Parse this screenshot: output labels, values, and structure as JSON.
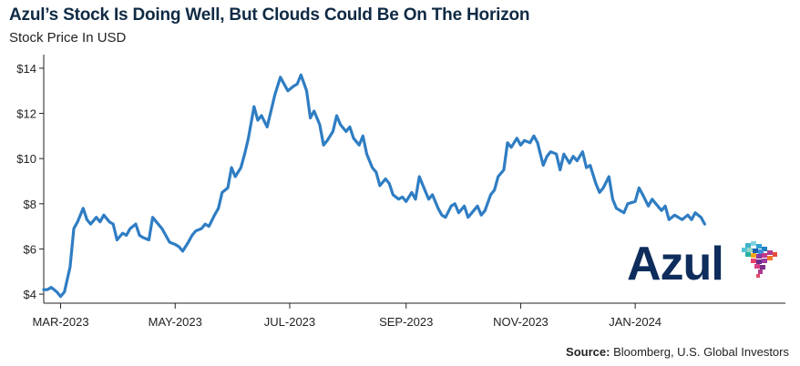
{
  "header": {
    "title": "Azul’s Stock Is Doing Well, But Clouds Could Be On The Horizon",
    "subtitle": "Stock Price In USD"
  },
  "source": {
    "label": "Source:",
    "text": "Bloomberg, U.S. Global Investors"
  },
  "logo": {
    "text": "Azul",
    "icon": "brazil-map-pixel-icon",
    "brand_color": "#0f2d5c"
  },
  "colors": {
    "line": "#2f7dc3",
    "axis": "#222222"
  },
  "chart_data": {
    "type": "line",
    "title": "Azul’s Stock Is Doing Well, But Clouds Could Be On The Horizon",
    "ylabel": "Stock Price In USD",
    "ylim": [
      3.6,
      14.6
    ],
    "xlim": [
      "2023-02-20",
      "2024-03-21"
    ],
    "grid": false,
    "y_ticks": [
      4,
      6,
      8,
      10,
      12,
      14
    ],
    "y_tick_labels": [
      "$4",
      "$6",
      "$8",
      "$10",
      "$12",
      "$14"
    ],
    "x_ticks": [
      "2023-03-01",
      "2023-05-01",
      "2023-07-01",
      "2023-09-01",
      "2023-11-01",
      "2024-01-01"
    ],
    "x_tick_labels": [
      "MAR-2023",
      "MAY-2023",
      "JUL-2023",
      "SEP-2023",
      "NOV-2023",
      "JAN-2024"
    ],
    "series": [
      {
        "values": [
          [
            "2023-02-20",
            4.2
          ],
          [
            "2023-02-22",
            4.2
          ],
          [
            "2023-02-24",
            4.3
          ],
          [
            "2023-02-27",
            4.1
          ],
          [
            "2023-03-01",
            3.9
          ],
          [
            "2023-03-03",
            4.1
          ],
          [
            "2023-03-06",
            5.2
          ],
          [
            "2023-03-08",
            6.9
          ],
          [
            "2023-03-10",
            7.2
          ],
          [
            "2023-03-13",
            7.8
          ],
          [
            "2023-03-15",
            7.3
          ],
          [
            "2023-03-17",
            7.1
          ],
          [
            "2023-03-20",
            7.4
          ],
          [
            "2023-03-22",
            7.2
          ],
          [
            "2023-03-24",
            7.5
          ],
          [
            "2023-03-27",
            7.2
          ],
          [
            "2023-03-29",
            7.1
          ],
          [
            "2023-03-31",
            6.4
          ],
          [
            "2023-04-03",
            6.7
          ],
          [
            "2023-04-05",
            6.6
          ],
          [
            "2023-04-07",
            6.9
          ],
          [
            "2023-04-10",
            7.1
          ],
          [
            "2023-04-12",
            6.6
          ],
          [
            "2023-04-14",
            6.5
          ],
          [
            "2023-04-17",
            6.4
          ],
          [
            "2023-04-19",
            7.4
          ],
          [
            "2023-04-21",
            7.2
          ],
          [
            "2023-04-24",
            6.9
          ],
          [
            "2023-04-26",
            6.6
          ],
          [
            "2023-04-28",
            6.3
          ],
          [
            "2023-05-01",
            6.2
          ],
          [
            "2023-05-03",
            6.1
          ],
          [
            "2023-05-05",
            5.9
          ],
          [
            "2023-05-08",
            6.3
          ],
          [
            "2023-05-10",
            6.6
          ],
          [
            "2023-05-12",
            6.8
          ],
          [
            "2023-05-15",
            6.9
          ],
          [
            "2023-05-17",
            7.1
          ],
          [
            "2023-05-19",
            7.0
          ],
          [
            "2023-05-22",
            7.5
          ],
          [
            "2023-05-24",
            7.8
          ],
          [
            "2023-05-26",
            8.5
          ],
          [
            "2023-05-29",
            8.7
          ],
          [
            "2023-05-31",
            9.6
          ],
          [
            "2023-06-02",
            9.2
          ],
          [
            "2023-06-05",
            9.6
          ],
          [
            "2023-06-07",
            10.2
          ],
          [
            "2023-06-09",
            10.9
          ],
          [
            "2023-06-12",
            12.3
          ],
          [
            "2023-06-14",
            11.7
          ],
          [
            "2023-06-16",
            11.9
          ],
          [
            "2023-06-19",
            11.4
          ],
          [
            "2023-06-21",
            12.1
          ],
          [
            "2023-06-23",
            12.8
          ],
          [
            "2023-06-26",
            13.6
          ],
          [
            "2023-06-28",
            13.3
          ],
          [
            "2023-06-30",
            13.0
          ],
          [
            "2023-07-03",
            13.2
          ],
          [
            "2023-07-05",
            13.3
          ],
          [
            "2023-07-07",
            13.7
          ],
          [
            "2023-07-10",
            13.0
          ],
          [
            "2023-07-12",
            11.8
          ],
          [
            "2023-07-14",
            12.1
          ],
          [
            "2023-07-17",
            11.5
          ],
          [
            "2023-07-19",
            10.6
          ],
          [
            "2023-07-21",
            10.8
          ],
          [
            "2023-07-24",
            11.2
          ],
          [
            "2023-07-26",
            11.9
          ],
          [
            "2023-07-28",
            11.5
          ],
          [
            "2023-07-31",
            11.2
          ],
          [
            "2023-08-02",
            11.4
          ],
          [
            "2023-08-04",
            10.9
          ],
          [
            "2023-08-07",
            10.6
          ],
          [
            "2023-08-09",
            11.0
          ],
          [
            "2023-08-11",
            10.2
          ],
          [
            "2023-08-14",
            9.6
          ],
          [
            "2023-08-16",
            9.4
          ],
          [
            "2023-08-18",
            8.8
          ],
          [
            "2023-08-21",
            9.1
          ],
          [
            "2023-08-23",
            8.9
          ],
          [
            "2023-08-25",
            8.4
          ],
          [
            "2023-08-28",
            8.2
          ],
          [
            "2023-08-30",
            8.3
          ],
          [
            "2023-09-01",
            8.1
          ],
          [
            "2023-09-04",
            8.5
          ],
          [
            "2023-09-06",
            8.2
          ],
          [
            "2023-09-08",
            9.2
          ],
          [
            "2023-09-11",
            8.6
          ],
          [
            "2023-09-13",
            8.2
          ],
          [
            "2023-09-15",
            8.4
          ],
          [
            "2023-09-18",
            7.8
          ],
          [
            "2023-09-20",
            7.5
          ],
          [
            "2023-09-22",
            7.4
          ],
          [
            "2023-09-25",
            7.9
          ],
          [
            "2023-09-27",
            8.0
          ],
          [
            "2023-09-29",
            7.6
          ],
          [
            "2023-10-02",
            7.9
          ],
          [
            "2023-10-04",
            7.4
          ],
          [
            "2023-10-06",
            7.6
          ],
          [
            "2023-10-09",
            7.9
          ],
          [
            "2023-10-11",
            7.5
          ],
          [
            "2023-10-13",
            7.7
          ],
          [
            "2023-10-16",
            8.4
          ],
          [
            "2023-10-18",
            8.6
          ],
          [
            "2023-10-20",
            9.2
          ],
          [
            "2023-10-23",
            9.5
          ],
          [
            "2023-10-25",
            10.7
          ],
          [
            "2023-10-27",
            10.5
          ],
          [
            "2023-10-30",
            10.9
          ],
          [
            "2023-11-01",
            10.6
          ],
          [
            "2023-11-03",
            10.8
          ],
          [
            "2023-11-06",
            10.7
          ],
          [
            "2023-11-08",
            11.0
          ],
          [
            "2023-11-10",
            10.7
          ],
          [
            "2023-11-13",
            9.7
          ],
          [
            "2023-11-15",
            10.1
          ],
          [
            "2023-11-17",
            10.3
          ],
          [
            "2023-11-20",
            10.2
          ],
          [
            "2023-11-22",
            9.5
          ],
          [
            "2023-11-24",
            10.2
          ],
          [
            "2023-11-27",
            9.8
          ],
          [
            "2023-11-29",
            10.1
          ],
          [
            "2023-12-01",
            9.9
          ],
          [
            "2023-12-04",
            10.3
          ],
          [
            "2023-12-06",
            9.6
          ],
          [
            "2023-12-08",
            9.7
          ],
          [
            "2023-12-11",
            8.9
          ],
          [
            "2023-12-13",
            8.5
          ],
          [
            "2023-12-15",
            8.7
          ],
          [
            "2023-12-18",
            9.2
          ],
          [
            "2023-12-20",
            8.2
          ],
          [
            "2023-12-22",
            7.8
          ],
          [
            "2023-12-26",
            7.6
          ],
          [
            "2023-12-28",
            8.0
          ],
          [
            "2024-01-01",
            8.1
          ],
          [
            "2024-01-03",
            8.7
          ],
          [
            "2024-01-05",
            8.4
          ],
          [
            "2024-01-08",
            7.9
          ],
          [
            "2024-01-10",
            8.2
          ],
          [
            "2024-01-12",
            8.0
          ],
          [
            "2024-01-15",
            7.7
          ],
          [
            "2024-01-17",
            7.9
          ],
          [
            "2024-01-19",
            7.3
          ],
          [
            "2024-01-22",
            7.5
          ],
          [
            "2024-01-24",
            7.4
          ],
          [
            "2024-01-26",
            7.3
          ],
          [
            "2024-01-29",
            7.5
          ],
          [
            "2024-01-31",
            7.3
          ],
          [
            "2024-02-02",
            7.6
          ],
          [
            "2024-02-05",
            7.4
          ],
          [
            "2024-02-07",
            7.1
          ]
        ]
      }
    ]
  }
}
